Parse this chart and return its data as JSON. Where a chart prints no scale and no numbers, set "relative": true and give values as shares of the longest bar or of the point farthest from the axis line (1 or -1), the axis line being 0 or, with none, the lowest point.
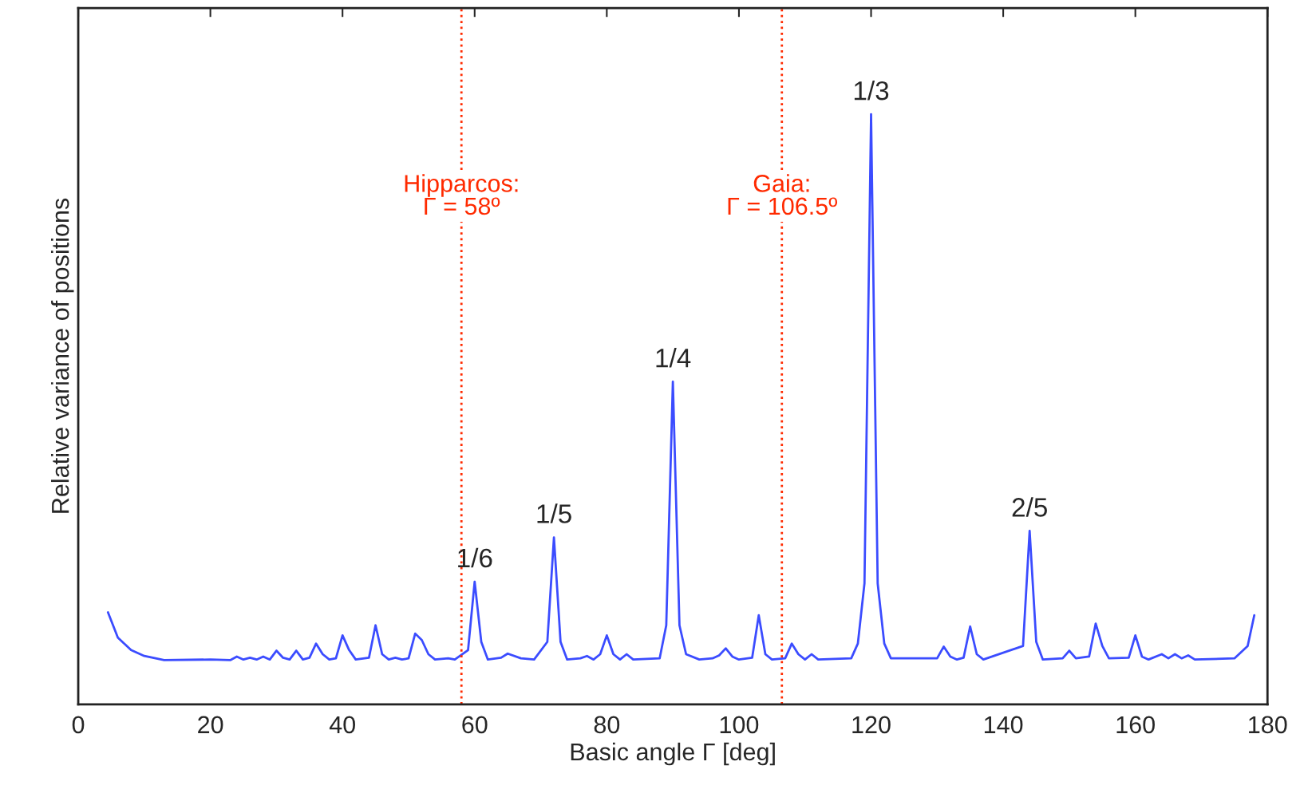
{
  "chart_data": {
    "type": "line",
    "relative": true,
    "xlabel": "Basic angle Γ [deg]",
    "ylabel": "Relative variance of positions",
    "xlim": [
      0,
      180
    ],
    "xticks": [
      0,
      20,
      40,
      60,
      80,
      100,
      120,
      140,
      160,
      180
    ],
    "grid": false,
    "legend": false,
    "marker": "none",
    "line_style": "solid",
    "series": [
      {
        "color": "#3b4cff",
        "x": [
          4.5,
          6,
          8,
          10,
          13,
          20,
          23,
          24,
          25,
          26,
          27,
          28,
          29,
          30,
          31,
          32,
          33,
          34,
          35,
          36,
          37,
          38,
          39,
          40,
          41,
          42,
          44,
          45,
          46,
          47,
          48,
          49,
          50,
          51,
          52,
          53,
          54,
          56,
          57,
          59,
          60,
          61,
          62,
          64,
          65,
          67,
          69,
          71,
          72,
          73,
          74,
          76,
          77,
          78,
          79,
          80,
          81,
          82,
          83,
          84,
          88,
          89,
          90,
          91,
          92,
          94,
          96,
          97,
          98,
          99,
          100,
          102,
          103,
          104,
          105,
          107,
          108,
          109,
          110,
          111,
          112,
          117,
          118,
          119,
          120,
          121,
          122,
          123,
          130,
          131,
          132,
          133,
          134,
          135,
          136,
          137,
          143,
          144,
          145,
          146,
          149,
          150,
          151,
          153,
          154,
          155,
          156,
          159,
          160,
          161,
          162,
          164,
          165,
          166,
          167,
          168,
          169,
          175,
          177,
          178
        ],
        "values": [
          0.156,
          0.113,
          0.092,
          0.082,
          0.075,
          0.076,
          0.075,
          0.081,
          0.076,
          0.079,
          0.076,
          0.081,
          0.076,
          0.091,
          0.079,
          0.076,
          0.091,
          0.076,
          0.079,
          0.103,
          0.085,
          0.076,
          0.078,
          0.117,
          0.092,
          0.076,
          0.079,
          0.134,
          0.085,
          0.076,
          0.079,
          0.076,
          0.078,
          0.12,
          0.109,
          0.085,
          0.076,
          0.078,
          0.076,
          0.092,
          0.208,
          0.106,
          0.076,
          0.079,
          0.086,
          0.078,
          0.076,
          0.106,
          0.283,
          0.106,
          0.076,
          0.078,
          0.082,
          0.076,
          0.085,
          0.117,
          0.085,
          0.076,
          0.085,
          0.076,
          0.078,
          0.134,
          0.547,
          0.134,
          0.085,
          0.076,
          0.078,
          0.083,
          0.095,
          0.081,
          0.076,
          0.079,
          0.151,
          0.085,
          0.076,
          0.078,
          0.103,
          0.085,
          0.076,
          0.085,
          0.076,
          0.078,
          0.103,
          0.205,
          1,
          0.205,
          0.103,
          0.078,
          0.078,
          0.098,
          0.081,
          0.076,
          0.079,
          0.132,
          0.085,
          0.076,
          0.099,
          0.294,
          0.106,
          0.076,
          0.078,
          0.091,
          0.078,
          0.081,
          0.137,
          0.099,
          0.078,
          0.079,
          0.117,
          0.081,
          0.076,
          0.085,
          0.078,
          0.085,
          0.078,
          0.083,
          0.076,
          0.078,
          0.099,
          0.151
        ]
      }
    ],
    "ref_lines": [
      {
        "axis": "x",
        "value": 58,
        "label": "Hipparcos:\nΓ = 58º",
        "color": "#ff2a00",
        "line_style": "dotted"
      },
      {
        "axis": "x",
        "value": 106.5,
        "label": "Gaia:\nΓ = 106.5º",
        "color": "#ff2a00",
        "line_style": "dotted"
      }
    ],
    "annotations": [
      {
        "text": "1/6",
        "x": 60,
        "y": 0.208
      },
      {
        "text": "1/5",
        "x": 72,
        "y": 0.283
      },
      {
        "text": "1/4",
        "x": 90,
        "y": 0.547
      },
      {
        "text": "1/3",
        "x": 120,
        "y": 1
      },
      {
        "text": "2/5",
        "x": 144,
        "y": 0.294
      }
    ]
  }
}
